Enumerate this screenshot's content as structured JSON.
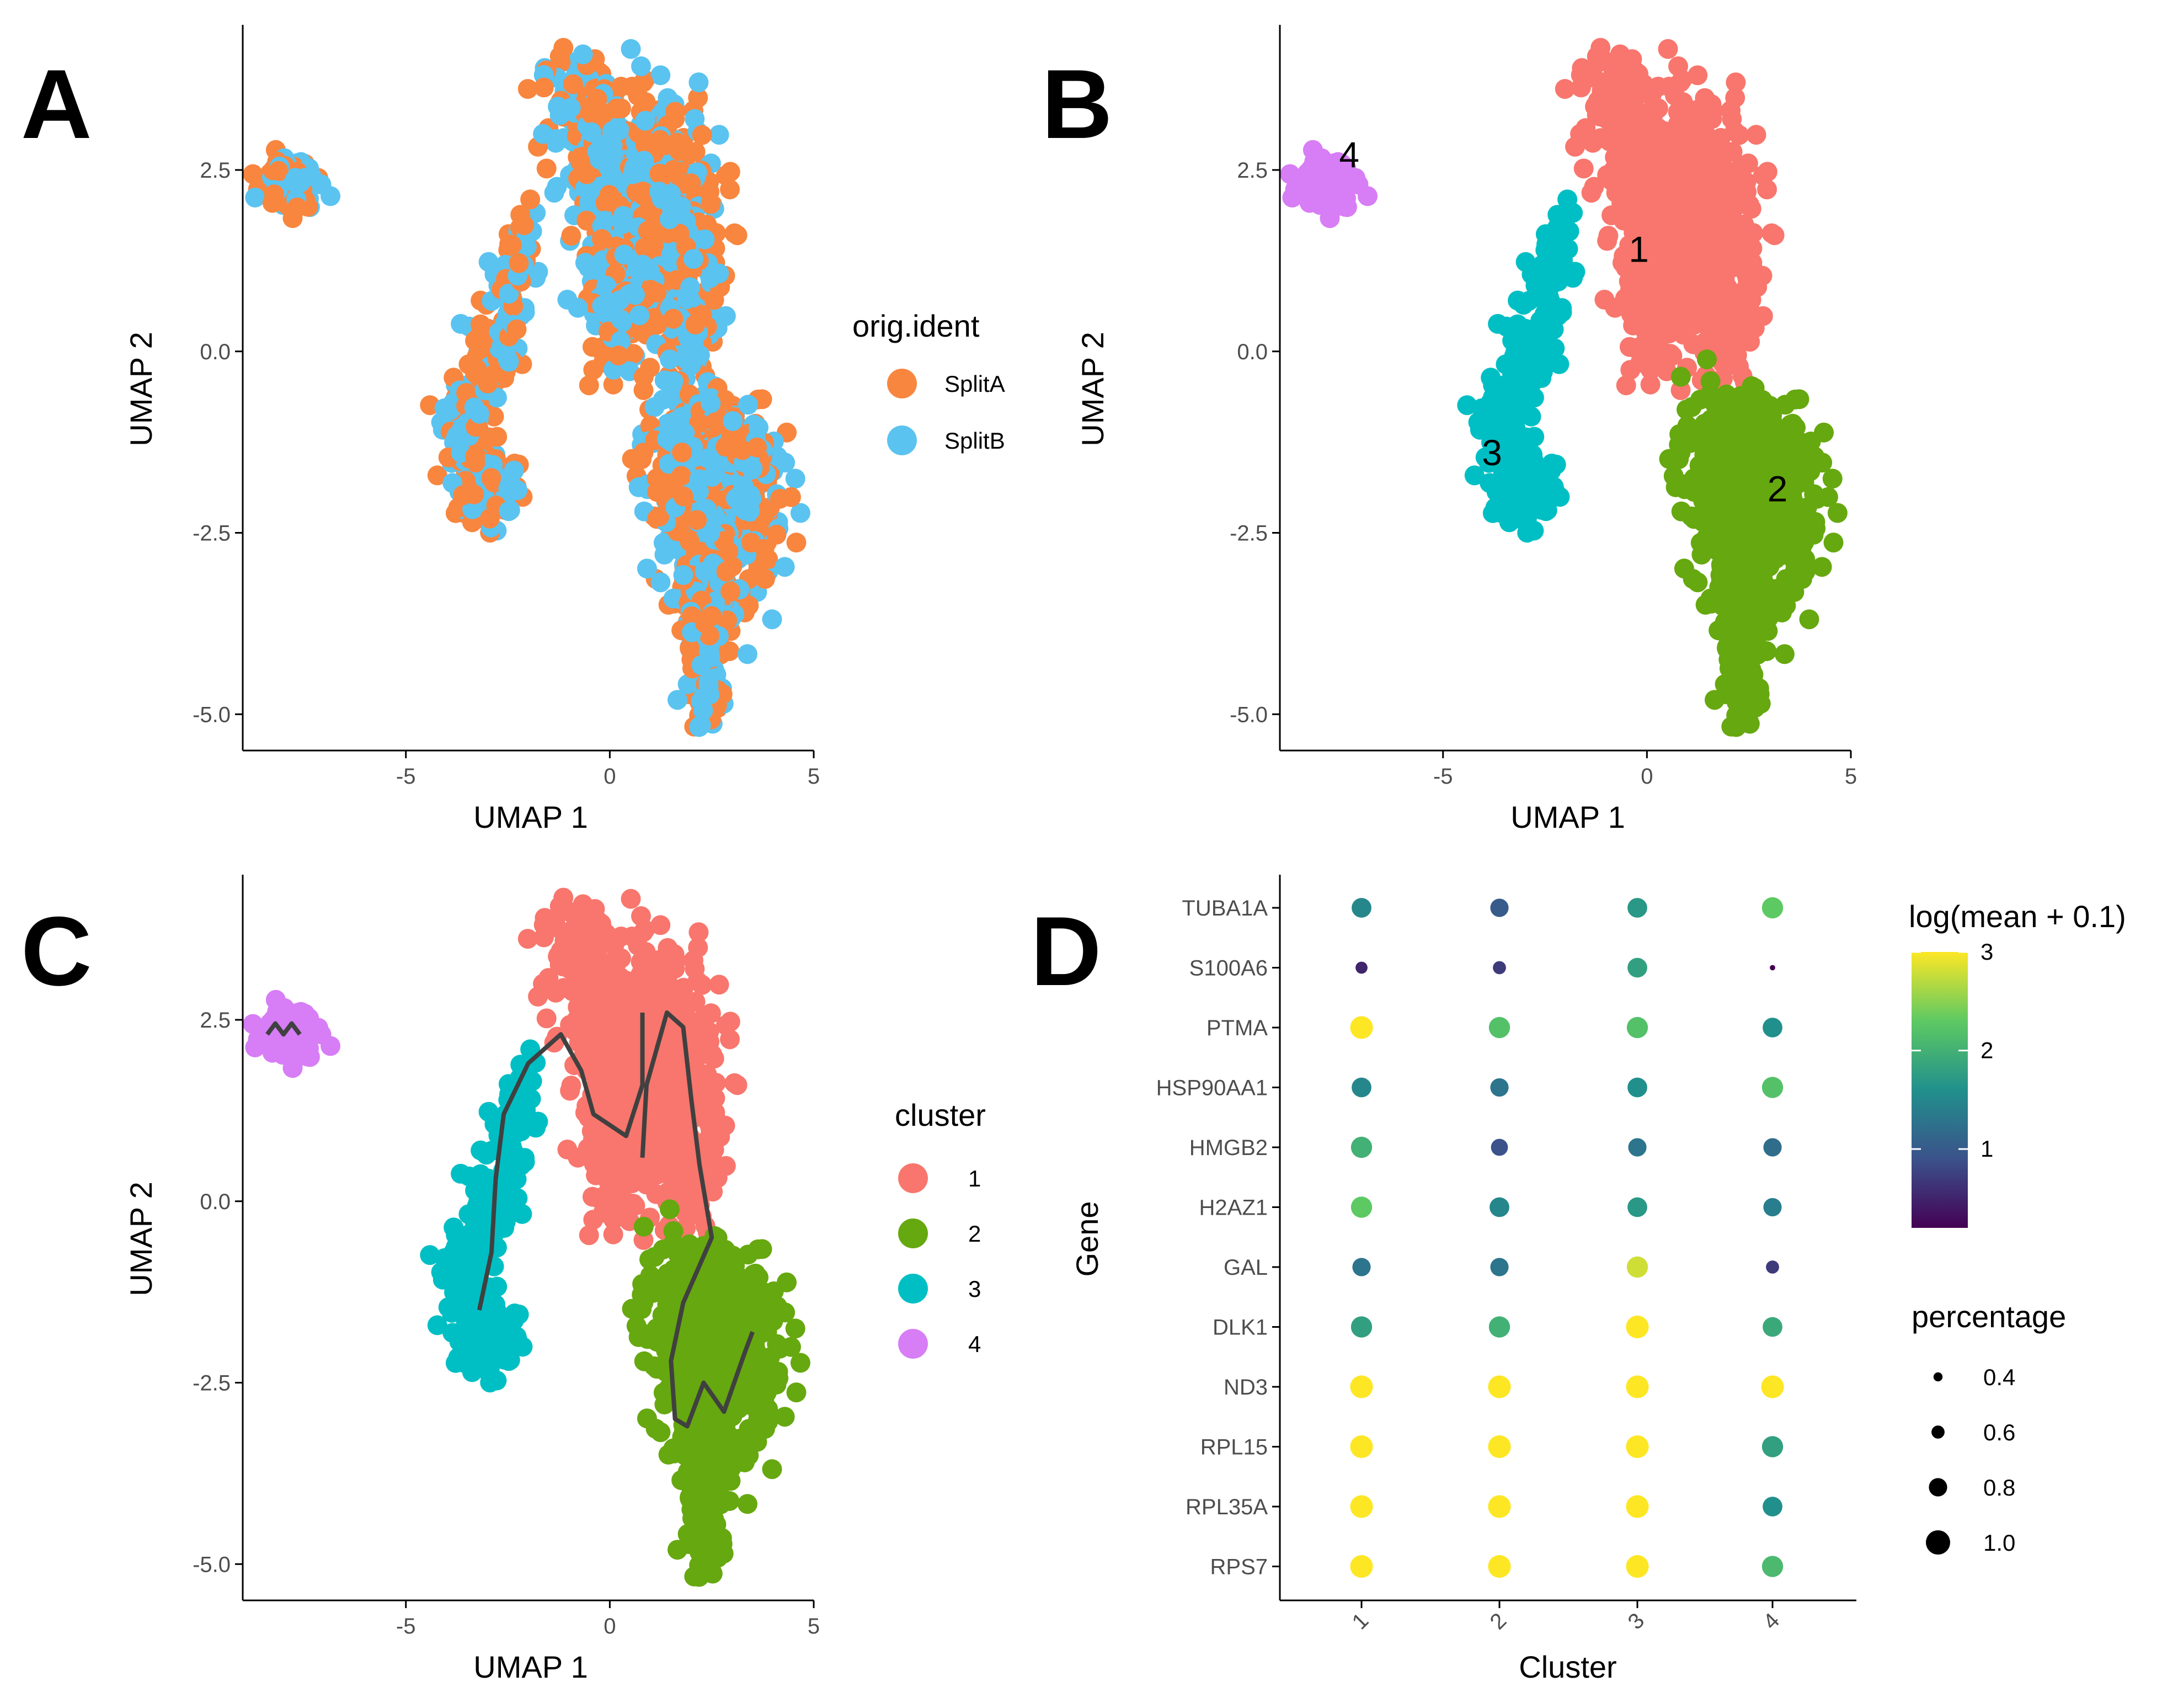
{
  "colors": {
    "splitA": "#F8863F",
    "splitB": "#5BC3F0",
    "cluster1": "#F8766D",
    "cluster2": "#66A80F",
    "cluster3": "#00BFC4",
    "cluster4": "#D77DF5",
    "trajectory": "#404040"
  },
  "chart_data": [
    {
      "panel": "A",
      "type": "scatter",
      "xlabel": "UMAP 1",
      "ylabel": "UMAP 2",
      "xlim": [
        -9.0,
        5.0
      ],
      "ylim": [
        -5.5,
        4.5
      ],
      "xticks": [
        -5,
        0,
        5
      ],
      "yticks": [
        -5.0,
        -2.5,
        0.0,
        2.5
      ],
      "xtick_labels": [
        "-5",
        "0",
        "5"
      ],
      "ytick_labels": [
        "-5.0",
        "-2.5",
        "0.0",
        "2.5"
      ],
      "legend_title": "orig.ident",
      "legend_placement": "right",
      "series": [
        {
          "name": "SplitA",
          "color": "#F8863F"
        },
        {
          "name": "SplitB",
          "color": "#5BC3F0"
        }
      ]
    },
    {
      "panel": "B",
      "type": "scatter",
      "xlabel": "UMAP 1",
      "ylabel": "UMAP 2",
      "xlim": [
        -9.0,
        5.0
      ],
      "ylim": [
        -5.5,
        4.5
      ],
      "xticks": [
        -5,
        0,
        5
      ],
      "yticks": [
        -5.0,
        -2.5,
        0.0,
        2.5
      ],
      "xtick_labels": [
        "-5",
        "0",
        "5"
      ],
      "ytick_labels": [
        "-5.0",
        "-2.5",
        "0.0",
        "2.5"
      ],
      "cluster_labels": [
        {
          "label": "1",
          "x": -0.2,
          "y": 1.4
        },
        {
          "label": "2",
          "x": 3.2,
          "y": -1.9
        },
        {
          "label": "3",
          "x": -3.8,
          "y": -1.4
        },
        {
          "label": "4",
          "x": -7.3,
          "y": 2.7
        }
      ]
    },
    {
      "panel": "C",
      "type": "scatter",
      "xlabel": "UMAP 1",
      "ylabel": "UMAP 2",
      "xlim": [
        -9.0,
        5.0
      ],
      "ylim": [
        -5.5,
        4.5
      ],
      "xticks": [
        -5,
        0,
        5
      ],
      "yticks": [
        -5.0,
        -2.5,
        0.0,
        2.5
      ],
      "xtick_labels": [
        "-5",
        "0",
        "5"
      ],
      "ytick_labels": [
        "-5.0",
        "-2.5",
        "0.0",
        "2.5"
      ],
      "legend_title": "cluster",
      "legend_placement": "right",
      "series": [
        {
          "name": "1",
          "color": "#F8766D"
        },
        {
          "name": "2",
          "color": "#66A80F"
        },
        {
          "name": "3",
          "color": "#00BFC4"
        },
        {
          "name": "4",
          "color": "#D77DF5"
        }
      ],
      "trajectory": [
        [
          [
            -8.4,
            2.3
          ],
          [
            -8.2,
            2.45
          ],
          [
            -8.0,
            2.3
          ],
          [
            -7.8,
            2.45
          ],
          [
            -7.6,
            2.3
          ]
        ],
        [
          [
            -3.2,
            -1.5
          ],
          [
            -2.9,
            -0.7
          ],
          [
            -2.8,
            0.3
          ],
          [
            -2.6,
            1.2
          ],
          [
            -2.0,
            1.9
          ],
          [
            -1.2,
            2.3
          ],
          [
            -0.7,
            1.8
          ],
          [
            -0.4,
            1.2
          ],
          [
            0.4,
            0.9
          ],
          [
            0.8,
            1.6
          ],
          [
            0.8,
            2.6
          ]
        ],
        [
          [
            0.8,
            0.6
          ],
          [
            0.9,
            1.6
          ],
          [
            1.4,
            2.6
          ],
          [
            1.8,
            2.4
          ],
          [
            2.0,
            1.4
          ],
          [
            2.2,
            0.5
          ],
          [
            2.5,
            -0.5
          ],
          [
            1.8,
            -1.4
          ],
          [
            1.5,
            -2.2
          ],
          [
            1.6,
            -3.0
          ],
          [
            1.9,
            -3.1
          ],
          [
            2.3,
            -2.5
          ],
          [
            2.8,
            -2.9
          ],
          [
            3.3,
            -2.1
          ],
          [
            3.5,
            -1.8
          ]
        ]
      ]
    },
    {
      "panel": "D",
      "type": "dot",
      "xlabel": "Cluster",
      "ylabel": "Gene",
      "categories": [
        "1",
        "2",
        "3",
        "4"
      ],
      "genes": [
        "TUBA1A",
        "S100A6",
        "PTMA",
        "HSP90AA1",
        "HMGB2",
        "H2AZ1",
        "GAL",
        "DLK1",
        "ND3",
        "RPL15",
        "RPL35A",
        "RPS7"
      ],
      "color_legend_title": "log(mean + 0.1)",
      "color_range": [
        0.2,
        3.0
      ],
      "color_ticks": [
        1,
        2,
        3
      ],
      "color_tick_labels": [
        "1",
        "2",
        "3"
      ],
      "size_legend_title": "percentage",
      "size_values": [
        0.4,
        0.6,
        0.8,
        1.0
      ],
      "size_labels": [
        "0.4",
        "0.6",
        "0.8",
        "1.0"
      ],
      "color_values": [
        [
          1.5,
          1.0,
          1.7,
          2.3
        ],
        [
          0.5,
          0.7,
          1.8,
          0.2
        ],
        [
          3.0,
          2.2,
          2.2,
          1.6
        ],
        [
          1.5,
          1.3,
          1.6,
          2.2
        ],
        [
          2.0,
          0.9,
          1.3,
          1.2
        ],
        [
          2.3,
          1.5,
          1.7,
          1.4
        ],
        [
          1.3,
          1.3,
          2.8,
          0.7
        ],
        [
          1.8,
          2.0,
          3.0,
          1.9
        ],
        [
          3.0,
          3.0,
          3.0,
          3.0
        ],
        [
          3.0,
          3.0,
          3.0,
          1.8
        ],
        [
          3.0,
          3.0,
          3.0,
          1.6
        ],
        [
          3.0,
          3.0,
          3.0,
          2.1
        ]
      ],
      "pct_values": [
        [
          0.85,
          0.8,
          0.85,
          0.9
        ],
        [
          0.55,
          0.6,
          0.85,
          0.15
        ],
        [
          0.95,
          0.9,
          0.9,
          0.85
        ],
        [
          0.85,
          0.8,
          0.85,
          0.9
        ],
        [
          0.9,
          0.75,
          0.8,
          0.8
        ],
        [
          0.9,
          0.85,
          0.85,
          0.8
        ],
        [
          0.8,
          0.8,
          0.9,
          0.6
        ],
        [
          0.9,
          0.9,
          0.95,
          0.85
        ],
        [
          0.95,
          0.95,
          0.95,
          0.95
        ],
        [
          0.95,
          0.95,
          0.95,
          0.9
        ],
        [
          0.95,
          0.95,
          0.95,
          0.85
        ],
        [
          0.95,
          0.95,
          0.95,
          0.9
        ]
      ]
    }
  ],
  "panels": {
    "a": {
      "letter": "A",
      "xlabel": "UMAP 1",
      "ylabel": "UMAP 2",
      "legend_title": "orig.ident",
      "legend": [
        "SplitA",
        "SplitB"
      ]
    },
    "b": {
      "letter": "B",
      "xlabel": "UMAP 1",
      "ylabel": "UMAP 2"
    },
    "c": {
      "letter": "C",
      "xlabel": "UMAP 1",
      "ylabel": "UMAP 2",
      "legend_title": "cluster",
      "legend": [
        "1",
        "2",
        "3",
        "4"
      ]
    },
    "d": {
      "letter": "D",
      "xlabel": "Cluster",
      "ylabel": "Gene",
      "color_title": "log(mean + 0.1)",
      "size_title": "percentage"
    }
  }
}
